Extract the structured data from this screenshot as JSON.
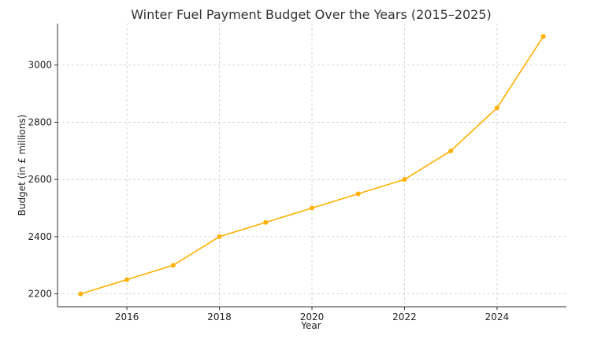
{
  "chart_data": {
    "type": "line",
    "title": "Winter Fuel Payment Budget Over the Years (2015–2025)",
    "xlabel": "Year",
    "ylabel": "Budget (in £ millions)",
    "x": [
      2015,
      2016,
      2017,
      2018,
      2019,
      2020,
      2021,
      2022,
      2023,
      2024,
      2025
    ],
    "series": [
      {
        "values": [
          2200,
          2250,
          2300,
          2400,
          2450,
          2500,
          2550,
          2600,
          2700,
          2850,
          3100
        ]
      }
    ],
    "xticks": [
      2016,
      2018,
      2020,
      2022,
      2024
    ],
    "yticks": [
      2200,
      2400,
      2600,
      2800,
      3000
    ],
    "xlim": [
      2014.5,
      2025.5
    ],
    "ylim": [
      2155,
      3145
    ],
    "grid": true,
    "line_color": "#FFB000"
  }
}
